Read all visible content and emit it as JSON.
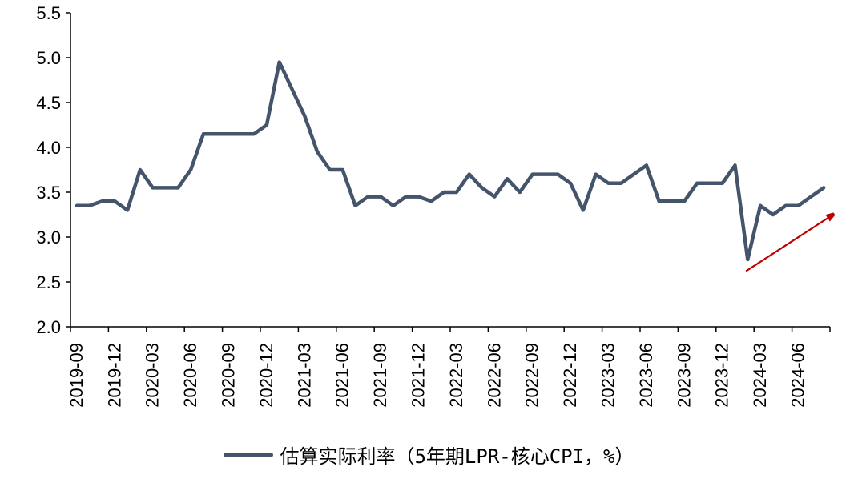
{
  "chart_data": {
    "type": "line",
    "title": "",
    "xlabel": "",
    "ylabel": "",
    "ylim": [
      2.0,
      5.5
    ],
    "y_ticks": [
      "2.0",
      "2.5",
      "3.0",
      "3.5",
      "4.0",
      "4.5",
      "5.0",
      "5.5"
    ],
    "x_tick_labels": [
      "2019-09",
      "2019-12",
      "2020-03",
      "2020-06",
      "2020-09",
      "2020-12",
      "2021-03",
      "2021-06",
      "2021-09",
      "2021-12",
      "2022-03",
      "2022-06",
      "2022-09",
      "2022-12",
      "2023-03",
      "2023-06",
      "2023-09",
      "2023-12",
      "2024-03",
      "2024-06"
    ],
    "x": [
      "2019-09",
      "2019-10",
      "2019-11",
      "2019-12",
      "2020-01",
      "2020-02",
      "2020-03",
      "2020-04",
      "2020-05",
      "2020-06",
      "2020-07",
      "2020-08",
      "2020-09",
      "2020-10",
      "2020-11",
      "2020-12",
      "2021-01",
      "2021-02",
      "2021-03",
      "2021-04",
      "2021-05",
      "2021-06",
      "2021-07",
      "2021-08",
      "2021-09",
      "2021-10",
      "2021-11",
      "2021-12",
      "2022-01",
      "2022-02",
      "2022-03",
      "2022-04",
      "2022-05",
      "2022-06",
      "2022-07",
      "2022-08",
      "2022-09",
      "2022-10",
      "2022-11",
      "2022-12",
      "2023-01",
      "2023-02",
      "2023-03",
      "2023-04",
      "2023-05",
      "2023-06",
      "2023-07",
      "2023-08",
      "2023-09",
      "2023-10",
      "2023-11",
      "2023-12",
      "2024-01",
      "2024-02",
      "2024-03",
      "2024-04",
      "2024-05",
      "2024-06",
      "2024-07",
      "2024-08"
    ],
    "series": [
      {
        "name": "估算实际利率（5年期LPR-核心CPI，%）",
        "color": "#44546A",
        "values": [
          3.35,
          3.35,
          3.4,
          3.4,
          3.3,
          3.75,
          3.55,
          3.55,
          3.55,
          3.75,
          4.15,
          4.15,
          4.15,
          4.15,
          4.15,
          4.25,
          4.95,
          4.65,
          4.35,
          3.95,
          3.75,
          3.75,
          3.35,
          3.45,
          3.45,
          3.35,
          3.45,
          3.45,
          3.4,
          3.5,
          3.5,
          3.7,
          3.55,
          3.45,
          3.65,
          3.5,
          3.7,
          3.7,
          3.7,
          3.6,
          3.3,
          3.7,
          3.6,
          3.6,
          3.7,
          3.8,
          3.4,
          3.4,
          3.4,
          3.6,
          3.6,
          3.6,
          3.8,
          2.75,
          3.35,
          3.25,
          3.35,
          3.35,
          3.45,
          3.55
        ]
      }
    ],
    "grid": false,
    "legend_position": "bottom",
    "annotation": {
      "type": "arrow",
      "color": "#C00000"
    }
  }
}
